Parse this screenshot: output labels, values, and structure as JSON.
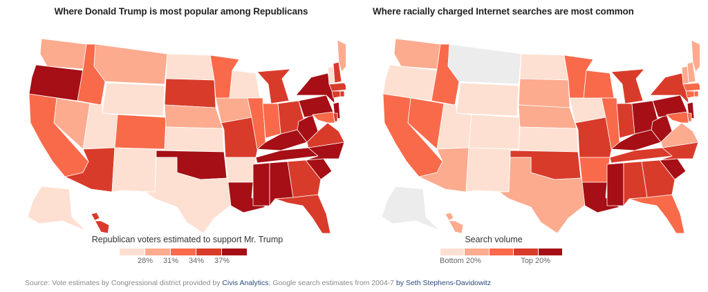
{
  "chart_data": [
    {
      "type": "map",
      "title": "Where Donald Trump is most popular among Republicans",
      "legend": {
        "title": "Republican voters estimated to support Mr. Trump",
        "colors": [
          "#fde0d2",
          "#fcab8f",
          "#f96a4a",
          "#d93b2b",
          "#a50f15"
        ],
        "tick_labels": [
          "28%",
          "31%",
          "34%",
          "37%"
        ]
      },
      "regions": {
        "WA": 1,
        "OR": 4,
        "CA": 2,
        "NV": 1,
        "ID": 2,
        "MT": 1,
        "WY": 0,
        "UT": 0,
        "AZ": 3,
        "CO": 2,
        "NM": 0,
        "ND": 0,
        "SD": 3,
        "NE": 1,
        "KS": 0,
        "OK": 4,
        "TX": 0,
        "MN": 2,
        "IA": 1,
        "MO": 3,
        "AR": 0,
        "LA": 4,
        "WI": 0,
        "IL": 2,
        "MS": 4,
        "MI": 3,
        "IN": 2,
        "KY": 4,
        "TN": 4,
        "AL": 4,
        "OH": 3,
        "WV": 4,
        "GA": 3,
        "FL": 3,
        "SC": 4,
        "NC": 4,
        "VA": 3,
        "PA": 4,
        "NY": 4,
        "VT": 0,
        "NH": 3,
        "ME": 1,
        "MA": 3,
        "CT": 3,
        "NJ": 4,
        "MD": 2,
        "DE": 3,
        "RI": 3,
        "AK": 0,
        "HI": 3
      }
    },
    {
      "type": "map",
      "title": "Where racially charged Internet searches are most common",
      "legend": {
        "title": "Search volume",
        "colors": [
          "#fde0d2",
          "#fcab8f",
          "#f96a4a",
          "#d93b2b",
          "#a50f15"
        ],
        "tick_labels": [
          "Bottom 20%",
          "Top 20%"
        ],
        "no_data_color": "#ececec"
      },
      "regions": {
        "WA": 1,
        "OR": 0,
        "CA": 2,
        "NV": 2,
        "ID": 2,
        "MT": -1,
        "WY": 0,
        "UT": 0,
        "AZ": 1,
        "CO": 0,
        "NM": 0,
        "ND": 0,
        "SD": 1,
        "NE": 1,
        "KS": 0,
        "OK": 3,
        "TX": 1,
        "MN": 2,
        "IA": 0,
        "MO": 3,
        "AR": 2,
        "LA": 4,
        "WI": 2,
        "IL": 2,
        "MS": 4,
        "MI": 3,
        "IN": 3,
        "KY": 4,
        "TN": 3,
        "AL": 3,
        "OH": 4,
        "WV": 4,
        "GA": 3,
        "FL": 2,
        "SC": 4,
        "NC": 3,
        "VA": 1,
        "PA": 4,
        "NY": 3,
        "VT": 1,
        "NH": 1,
        "ME": 1,
        "MA": 2,
        "CT": 2,
        "NJ": 4,
        "MD": 2,
        "DE": 2,
        "RI": 2,
        "AK": -1,
        "HI": 1
      }
    }
  ],
  "source": {
    "prefix": "Source: Vote estimates by Congressional district provided by ",
    "link1": "Civis Analytics",
    "middle": "; Google search estimates from 2004-7 ",
    "link2": "by Seth Stephens-Davidowitz"
  }
}
